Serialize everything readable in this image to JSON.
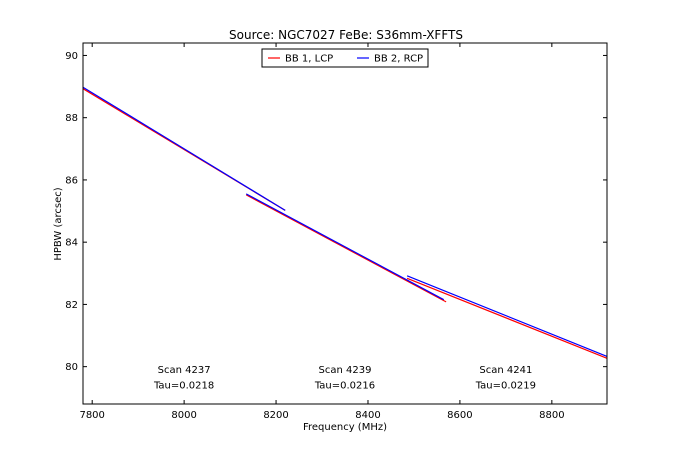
{
  "chart_data": {
    "type": "line",
    "title": "Source: NGC7027 FeBe: S36mm-XFFTS",
    "xlabel": "Frequency (MHz)",
    "ylabel": "HPBW (arcsec)",
    "xlim": [
      7780,
      8920
    ],
    "ylim": [
      78.8,
      90.4
    ],
    "xticks": [
      7800,
      8000,
      8200,
      8400,
      8600,
      8800
    ],
    "yticks": [
      80,
      82,
      84,
      86,
      88,
      90
    ],
    "grid": false,
    "legend_position": "top-center",
    "series": [
      {
        "name": "BB 1, LCP",
        "color": "#ff0000",
        "segments": [
          [
            [
              7780,
              88.93
            ],
            [
              8220,
              85.02
            ]
          ],
          [
            [
              8135,
              85.52
            ],
            [
              8570,
              82.08
            ]
          ],
          [
            [
              8485,
              82.84
            ],
            [
              8920,
              80.27
            ]
          ]
        ]
      },
      {
        "name": "BB 2, RCP",
        "color": "#0000ff",
        "segments": [
          [
            [
              7780,
              88.98
            ],
            [
              8220,
              85.02
            ]
          ],
          [
            [
              8135,
              85.55
            ],
            [
              8565,
              82.15
            ]
          ],
          [
            [
              8485,
              82.92
            ],
            [
              8920,
              80.33
            ]
          ]
        ]
      }
    ],
    "annotations": [
      {
        "line1": "Scan 4237",
        "line2": "Tau=0.0218",
        "x": 8000,
        "y1": 79.8,
        "y2": 79.3
      },
      {
        "line1": "Scan 4239",
        "line2": "Tau=0.0216",
        "x": 8350,
        "y1": 79.8,
        "y2": 79.3
      },
      {
        "line1": "Scan 4241",
        "line2": "Tau=0.0219",
        "x": 8700,
        "y1": 79.8,
        "y2": 79.3
      }
    ]
  }
}
